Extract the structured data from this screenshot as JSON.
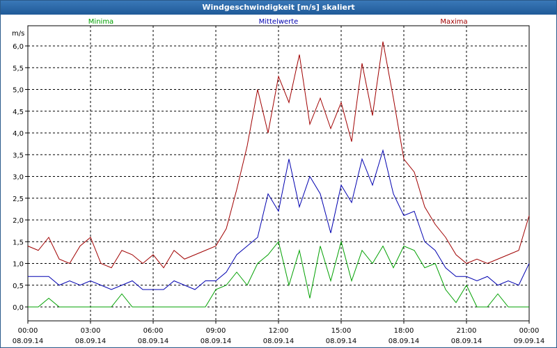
{
  "window": {
    "title": "Windgeschwindigkeit [m/s] skaliert"
  },
  "chart_data": {
    "type": "line",
    "title": "Windgeschwindigkeit [m/s] skaliert",
    "ylabel": "m/s",
    "ylim": [
      0,
      6.0
    ],
    "yticks": [
      "0,0",
      "0,5",
      "1,0",
      "1,5",
      "2,0",
      "2,5",
      "3,0",
      "3,5",
      "4,0",
      "4,5",
      "5,0",
      "5,5",
      "6,0"
    ],
    "xticks": [
      {
        "time": "00:00",
        "date": "08.09.14"
      },
      {
        "time": "03:00",
        "date": "08.09.14"
      },
      {
        "time": "06:00",
        "date": "08.09.14"
      },
      {
        "time": "09:00",
        "date": "08.09.14"
      },
      {
        "time": "12:00",
        "date": "08.09.14"
      },
      {
        "time": "15:00",
        "date": "08.09.14"
      },
      {
        "time": "18:00",
        "date": "08.09.14"
      },
      {
        "time": "21:00",
        "date": "08.09.14"
      },
      {
        "time": "00:00",
        "date": "09.09.14"
      }
    ],
    "x_hours": [
      0,
      0.5,
      1,
      1.5,
      2,
      2.5,
      3,
      3.5,
      4,
      4.5,
      5,
      5.5,
      6,
      6.5,
      7,
      7.5,
      8,
      8.5,
      9,
      9.5,
      10,
      10.5,
      11,
      11.5,
      12,
      12.5,
      13,
      13.5,
      14,
      14.5,
      15,
      15.5,
      16,
      16.5,
      17,
      17.5,
      18,
      18.5,
      19,
      19.5,
      20,
      20.5,
      21,
      21.5,
      22,
      22.5,
      23,
      23.5,
      24
    ],
    "grid": true,
    "legend_placement": "top",
    "series": [
      {
        "name": "Minima",
        "color": "#00a000",
        "values": [
          0.0,
          0.0,
          0.2,
          0.0,
          0.0,
          0.0,
          0.0,
          0.0,
          0.0,
          0.3,
          0.0,
          0.0,
          0.0,
          0.0,
          0.0,
          0.0,
          0.0,
          0.0,
          0.4,
          0.5,
          0.8,
          0.5,
          1.0,
          1.2,
          1.5,
          0.5,
          1.3,
          0.2,
          1.4,
          0.6,
          1.5,
          0.6,
          1.3,
          1.0,
          1.4,
          0.9,
          1.4,
          1.3,
          0.9,
          1.0,
          0.4,
          0.1,
          0.5,
          0.0,
          0.0,
          0.3,
          0.0,
          0.0,
          0.0
        ]
      },
      {
        "name": "Mittelwerte",
        "color": "#0000b0",
        "values": [
          0.7,
          0.7,
          0.7,
          0.5,
          0.6,
          0.5,
          0.6,
          0.5,
          0.4,
          0.5,
          0.6,
          0.4,
          0.4,
          0.4,
          0.6,
          0.5,
          0.4,
          0.6,
          0.6,
          0.8,
          1.2,
          1.4,
          1.6,
          2.6,
          2.2,
          3.4,
          2.3,
          3.0,
          2.6,
          1.7,
          2.8,
          2.4,
          3.4,
          2.8,
          3.6,
          2.6,
          2.1,
          2.2,
          1.5,
          1.3,
          0.9,
          0.7,
          0.7,
          0.6,
          0.7,
          0.5,
          0.6,
          0.5,
          1.0
        ]
      },
      {
        "name": "Maxima",
        "color": "#a00000",
        "values": [
          1.4,
          1.3,
          1.6,
          1.1,
          1.0,
          1.4,
          1.6,
          1.0,
          0.9,
          1.3,
          1.2,
          1.0,
          1.2,
          0.9,
          1.3,
          1.1,
          1.2,
          1.3,
          1.4,
          1.8,
          2.7,
          3.7,
          5.0,
          4.0,
          5.3,
          4.7,
          5.8,
          4.2,
          4.8,
          4.1,
          4.7,
          3.8,
          5.6,
          4.4,
          6.1,
          4.8,
          3.4,
          3.1,
          2.3,
          1.9,
          1.6,
          1.2,
          1.0,
          1.1,
          1.0,
          1.1,
          1.2,
          1.3,
          2.1
        ]
      }
    ]
  }
}
